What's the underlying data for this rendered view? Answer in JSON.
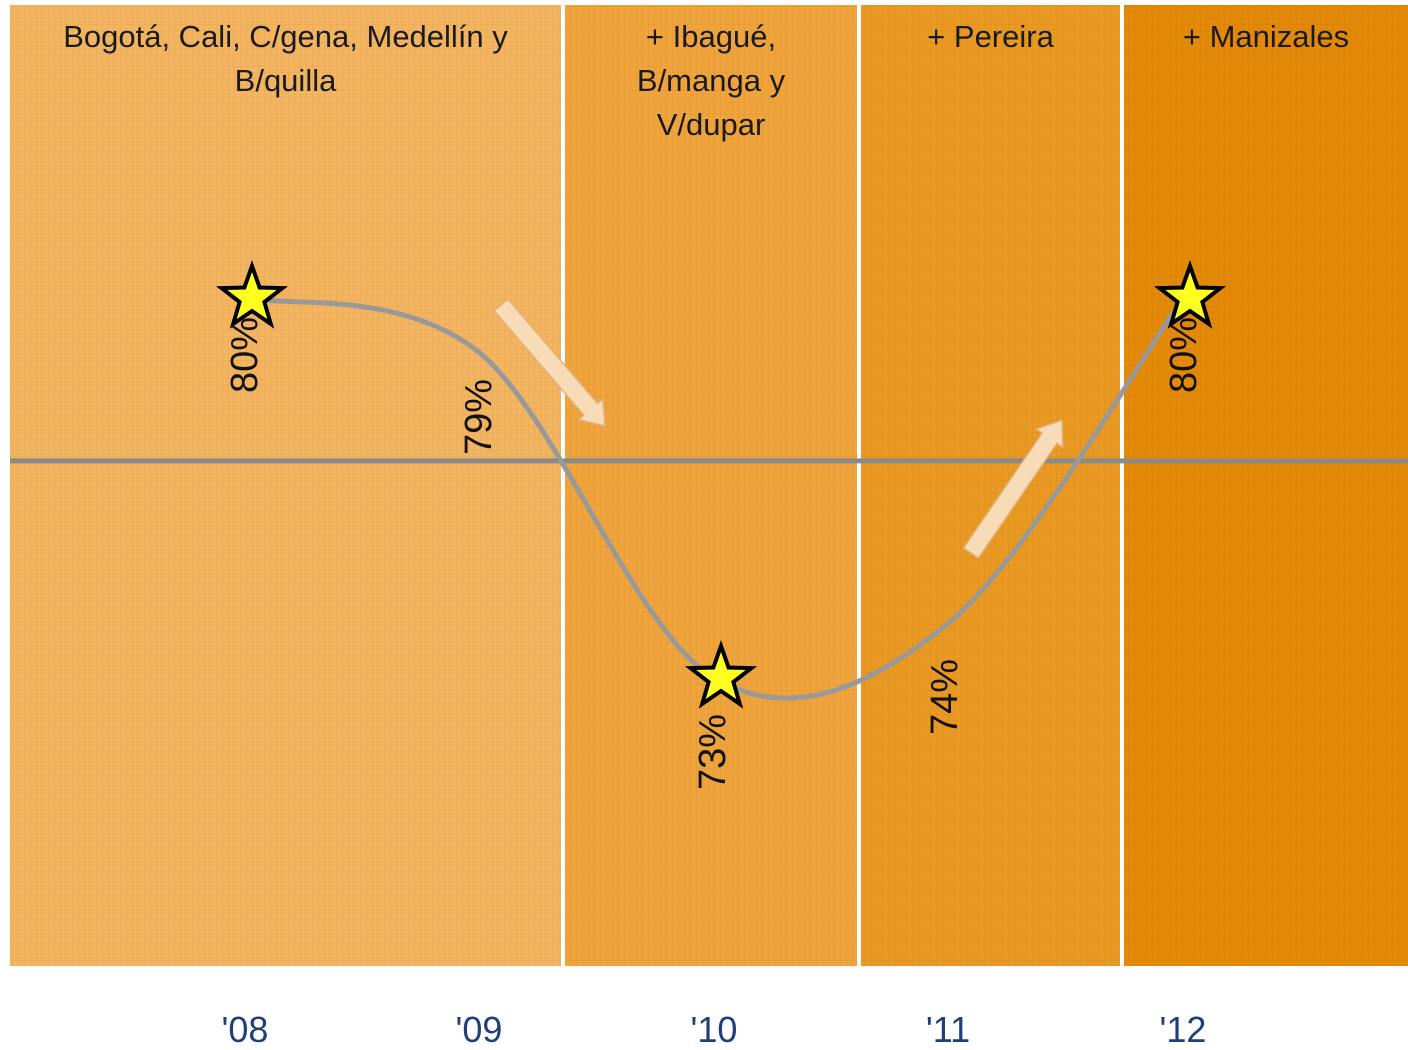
{
  "chart_data": {
    "type": "line",
    "title": "",
    "xlabel": "",
    "ylabel": "",
    "grid": false,
    "categories": [
      "'08",
      "'09",
      "'10",
      "'11",
      "'12"
    ],
    "values": [
      80,
      79,
      73,
      74,
      80
    ],
    "value_labels": [
      "80%",
      "79%",
      "73%",
      "74%",
      "80%"
    ],
    "starred": [
      true,
      false,
      true,
      false,
      true
    ],
    "reference_value": 77,
    "ylim": [
      68,
      84
    ],
    "regions": [
      {
        "lines": [
          "Bogotá, Cali,  C/gena, Medellín y",
          "B/quilla"
        ],
        "from": "'08",
        "to": "'09",
        "color": "#f4b560"
      },
      {
        "lines": [
          "+ Ibagué,",
          "B/manga y",
          "V/dupar"
        ],
        "from": "'10",
        "to": "'10",
        "color": "#f0a43c"
      },
      {
        "lines": [
          "+ Pereira"
        ],
        "from": "'11",
        "to": "'11",
        "color": "#ea9a22"
      },
      {
        "lines": [
          "+ Manizales"
        ],
        "from": "'12",
        "to": "'12",
        "color": "#e48a08"
      }
    ],
    "trend_arrows": [
      "down",
      "up"
    ],
    "colors": {
      "line": "#999999",
      "reference_line": "#8a8a8a",
      "star_fill": "#ffff22",
      "star_stroke": "#000000",
      "arrow": "#f8dcb8",
      "year_text": "#1f3f7a"
    }
  }
}
